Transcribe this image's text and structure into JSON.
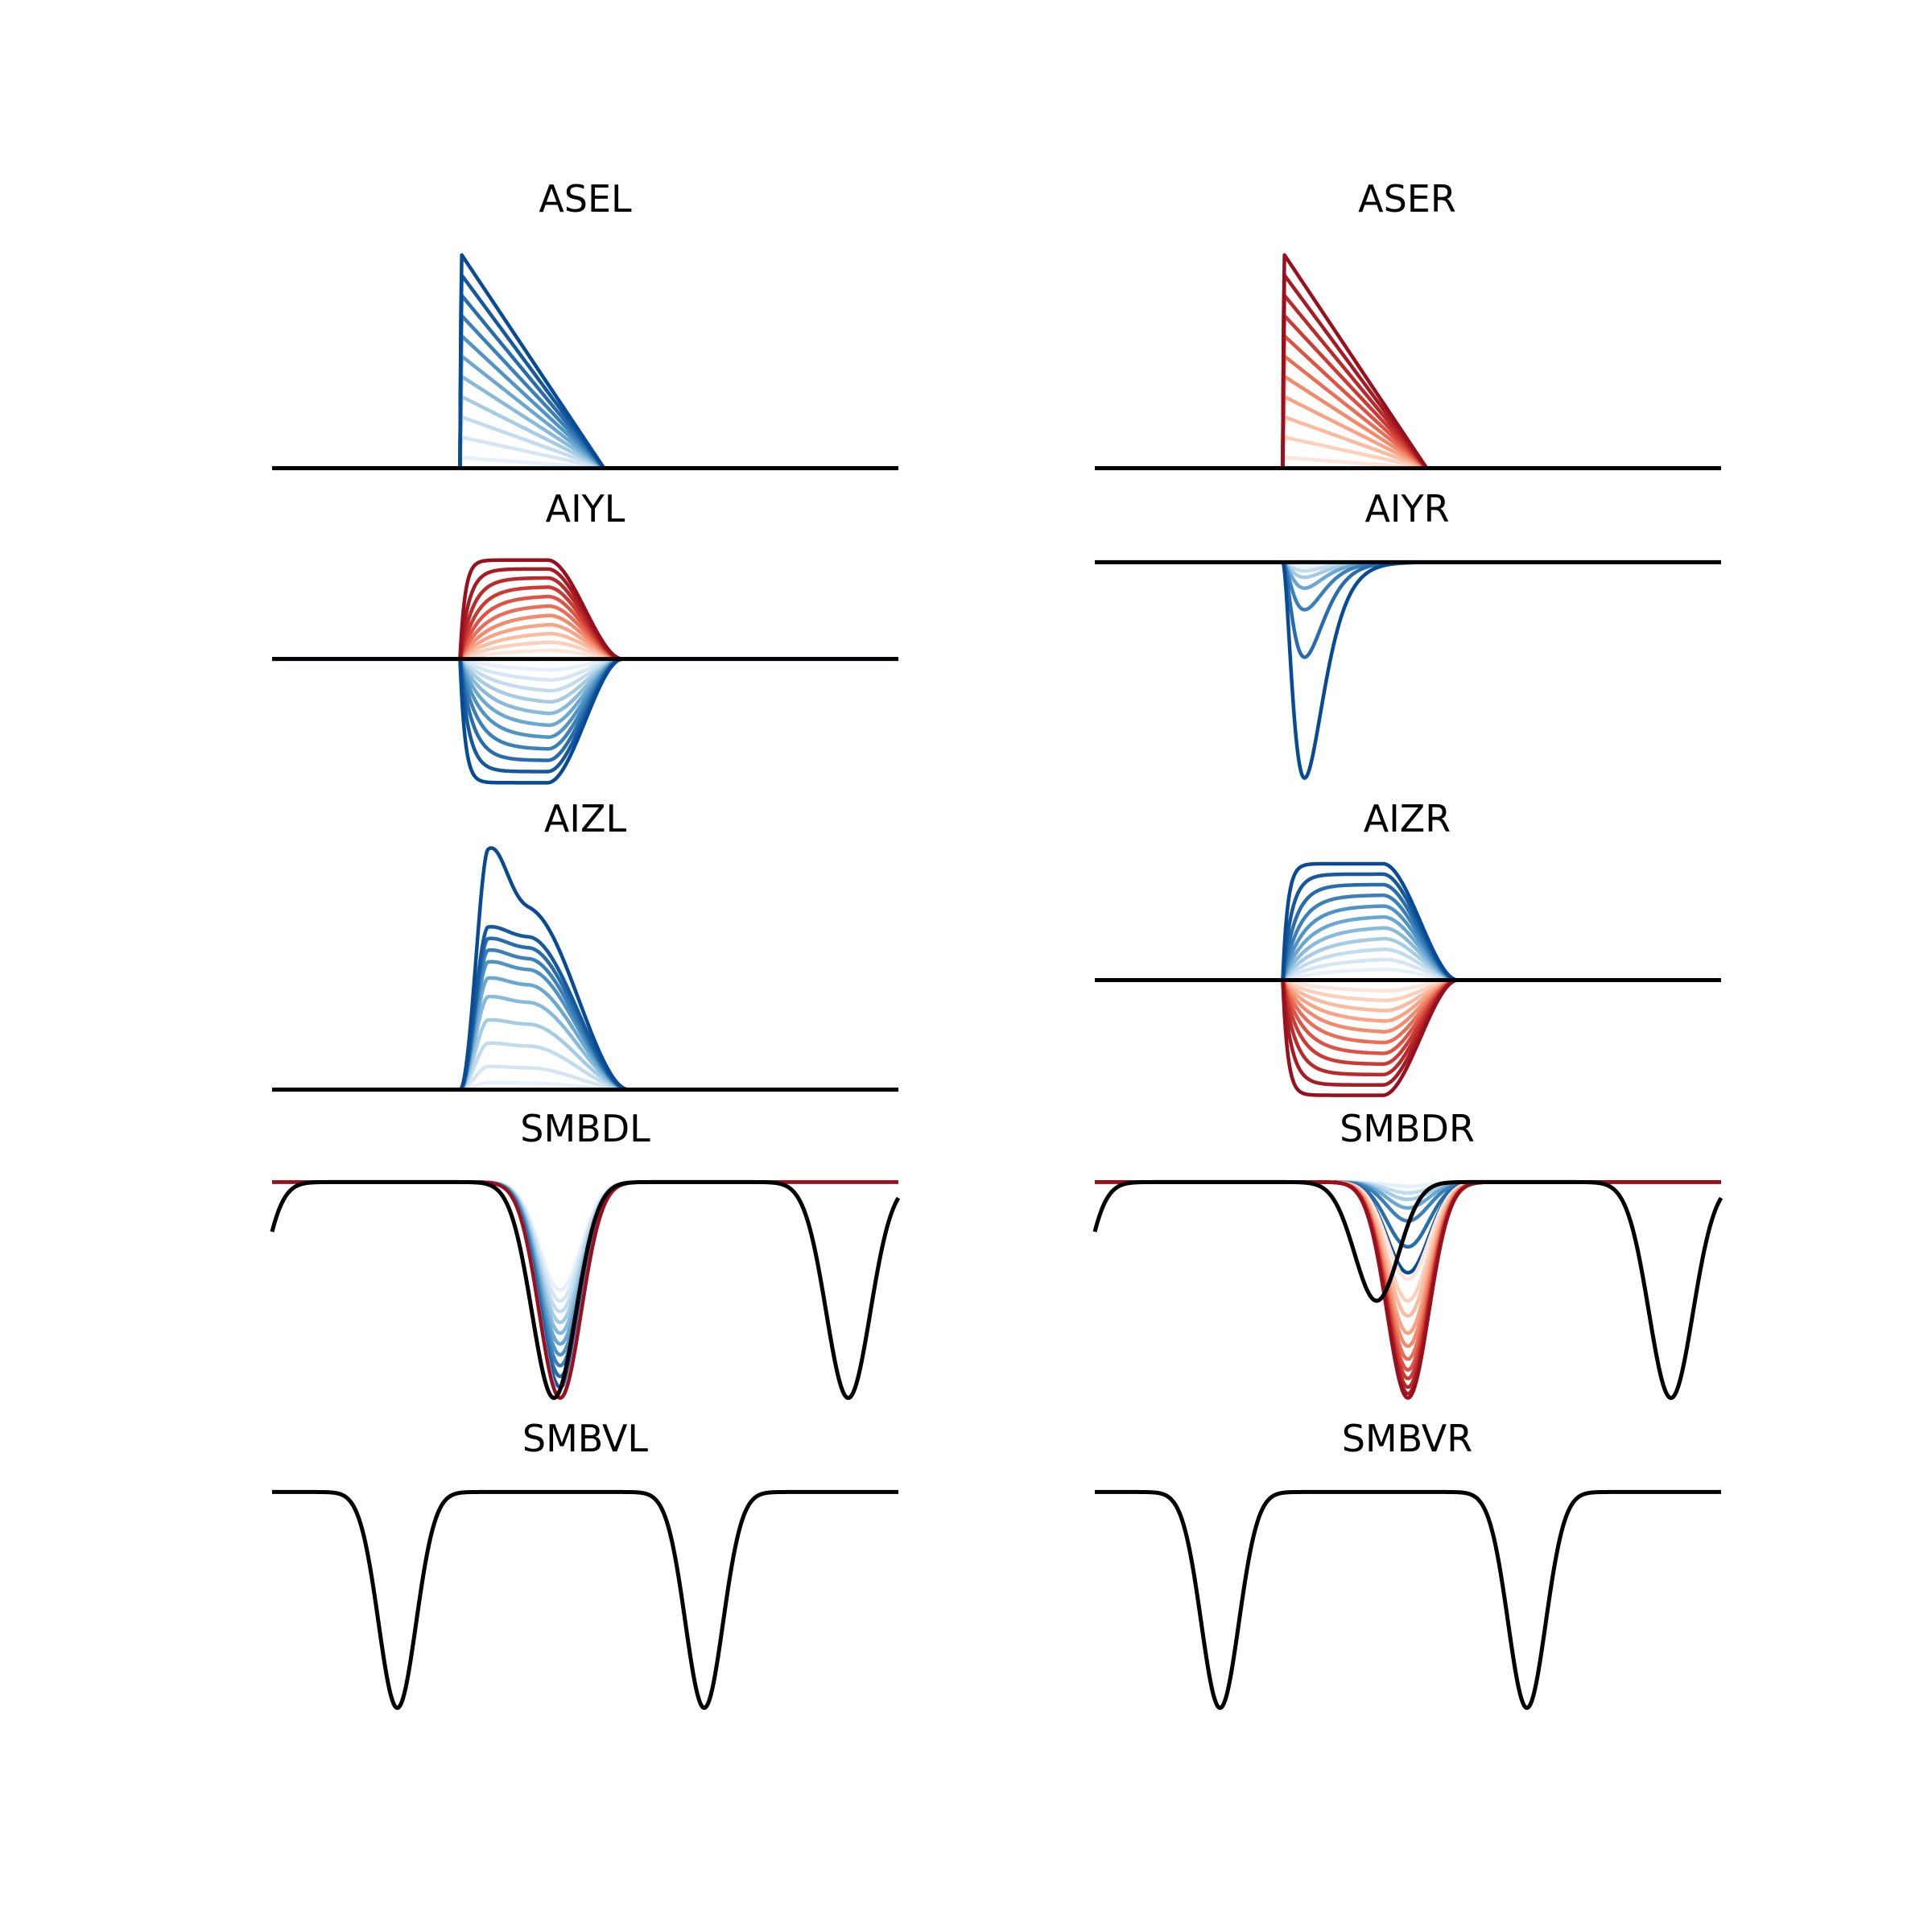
{
  "figure": {
    "panel_titles": [
      "ASEL",
      "ASER",
      "AIYL",
      "AIYR",
      "AIZL",
      "AIZR",
      "SMBDL",
      "SMBDR",
      "SMBVL",
      "SMBVR"
    ]
  },
  "colors": {
    "reference_line": "#000000",
    "blues": [
      "#e6f0fa",
      "#d4e6f4",
      "#c2dcef",
      "#a6cce4",
      "#88bbdb",
      "#6aa8d1",
      "#4f94c4",
      "#3b80b8",
      "#276dac",
      "#16589c",
      "#084b94"
    ],
    "reds": [
      "#fde4d8",
      "#fcd0bb",
      "#fbbba0",
      "#f8a385",
      "#f28a6c",
      "#ea6d55",
      "#de5343",
      "#cd3a34",
      "#b92a2b",
      "#a51c25",
      "#980f1e"
    ]
  },
  "chart_data": [
    {
      "type": "line",
      "title": "ASEL",
      "xlabel": "",
      "ylabel": "",
      "axes_visible": false,
      "grid": false,
      "legend": "none",
      "xlim": [
        0,
        10
      ],
      "ylim": [
        -0.05,
        1.05
      ],
      "family": "ramp",
      "color_scale": "blues",
      "n_traces": 11,
      "trace_amplitude": [
        0.05,
        1.0
      ],
      "t_start": 3.0,
      "t_end": 5.3,
      "reference_trace": "flat",
      "reference_value": 0
    },
    {
      "type": "line",
      "title": "ASER",
      "xlabel": "",
      "ylabel": "",
      "axes_visible": false,
      "grid": false,
      "legend": "none",
      "xlim": [
        0,
        10
      ],
      "ylim": [
        -0.05,
        1.05
      ],
      "family": "ramp",
      "color_scale": "reds",
      "n_traces": 11,
      "trace_amplitude": [
        0.05,
        1.0
      ],
      "t_start": 3.0,
      "t_end": 5.3,
      "reference_trace": "flat",
      "reference_value": 0
    },
    {
      "type": "line",
      "title": "AIYL",
      "xlabel": "",
      "ylabel": "",
      "axes_visible": false,
      "grid": false,
      "legend": "none",
      "xlim": [
        0,
        10
      ],
      "ylim": [
        -1.05,
        0.87
      ],
      "family": "plateau",
      "groups": [
        {
          "color_scale": "reds",
          "n_traces": 11,
          "trace_amplitude": [
            0.08,
            0.8
          ],
          "direction": 1
        },
        {
          "color_scale": "blues",
          "n_traces": 11,
          "trace_amplitude": [
            0.1,
            1.0
          ],
          "direction": -1
        }
      ],
      "t_start": 3.0,
      "t_end": 5.6,
      "reference_trace": "flat",
      "reference_value": 0
    },
    {
      "type": "line",
      "title": "AIYR",
      "xlabel": "",
      "ylabel": "",
      "axes_visible": false,
      "grid": false,
      "legend": "none",
      "xlim": [
        0,
        10
      ],
      "ylim": [
        -1.05,
        0.05
      ],
      "family": "dip",
      "color_scale": "blues",
      "trace_amplitude": [
        0.02,
        0.04,
        0.07,
        0.12,
        0.22,
        0.44,
        1.0
      ],
      "t_peak": 3.35,
      "reference_trace": "flat",
      "reference_value": 0
    },
    {
      "type": "line",
      "title": "AIZL",
      "xlabel": "",
      "ylabel": "",
      "axes_visible": false,
      "grid": false,
      "legend": "none",
      "xlim": [
        0,
        10
      ],
      "ylim": [
        -0.04,
        1.0
      ],
      "family": "bump",
      "color_scale": "blues",
      "trace_amplitude": [
        0.03,
        0.1,
        0.2,
        0.3,
        0.4,
        0.48,
        0.55,
        0.6,
        0.65,
        0.7,
        0.98
      ],
      "t_start": 3.0,
      "t_end": 5.7,
      "reference_trace": "flat",
      "reference_value": 0
    },
    {
      "type": "line",
      "title": "AIZR",
      "xlabel": "",
      "ylabel": "",
      "axes_visible": false,
      "grid": false,
      "legend": "none",
      "xlim": [
        0,
        10
      ],
      "ylim": [
        -1.0,
        1.0
      ],
      "family": "plateau",
      "groups": [
        {
          "color_scale": "blues",
          "n_traces": 11,
          "trace_amplitude": [
            0.1,
            0.98
          ],
          "direction": 1
        },
        {
          "color_scale": "reds",
          "n_traces": 11,
          "trace_amplitude": [
            0.1,
            0.97
          ],
          "direction": -1
        }
      ],
      "t_start": 3.0,
      "t_end": 5.8,
      "reference_trace": "flat",
      "reference_value": 0
    },
    {
      "type": "line",
      "title": "SMBDL",
      "xlabel": "",
      "ylabel": "",
      "axes_visible": false,
      "grid": false,
      "legend": "none",
      "xlim": [
        0,
        10
      ],
      "ylim": [
        -1.05,
        0.05
      ],
      "family": "oscillation",
      "reference_trace": "periodic",
      "baseline": 0,
      "trough_depth": 1.0,
      "period": 5.0,
      "trough_centers": [
        -0.6,
        4.5,
        9.2
      ],
      "trough_width": 0.35,
      "perturbed_trough_center": 4.6,
      "groups": [
        {
          "color_scale": "blues",
          "trace_depth": [
            0.5,
            0.55,
            0.6,
            0.65,
            0.7,
            0.75,
            0.8,
            0.85,
            0.9,
            0.95,
            1.0
          ]
        },
        {
          "color_scale": "reds",
          "trace_depth": [
            0.99,
            1.0
          ]
        }
      ]
    },
    {
      "type": "line",
      "title": "SMBDR",
      "xlabel": "",
      "ylabel": "",
      "axes_visible": false,
      "grid": false,
      "legend": "none",
      "xlim": [
        0,
        10
      ],
      "ylim": [
        -1.05,
        0.05
      ],
      "family": "oscillation",
      "reference_trace": "periodic",
      "baseline": 0,
      "reference_depth": 0.55,
      "period": 5.0,
      "trough_centers": [
        -0.6,
        4.5,
        9.2
      ],
      "trough_width": 0.35,
      "perturbed_trough_center": 5.0,
      "groups": [
        {
          "color_scale": "blues",
          "trace_depth": [
            0.02,
            0.05,
            0.08,
            0.12,
            0.18,
            0.3,
            0.42
          ]
        },
        {
          "color_scale": "reds",
          "trace_depth": [
            0.45,
            0.55,
            0.62,
            0.7,
            0.76,
            0.82,
            0.87,
            0.91,
            0.95,
            0.98,
            1.0
          ]
        }
      ]
    },
    {
      "type": "line",
      "title": "SMBVL",
      "xlabel": "",
      "ylabel": "",
      "axes_visible": false,
      "grid": false,
      "legend": "none",
      "xlim": [
        0,
        10
      ],
      "ylim": [
        -1.05,
        0.05
      ],
      "family": "oscillation",
      "reference_trace": "periodic",
      "baseline": 0,
      "trough_depth": 1.0,
      "period": 5.0,
      "trough_centers": [
        2.0,
        6.9
      ],
      "trough_width": 0.3,
      "groups": []
    },
    {
      "type": "line",
      "title": "SMBVR",
      "xlabel": "",
      "ylabel": "",
      "axes_visible": false,
      "grid": false,
      "legend": "none",
      "xlim": [
        0,
        10
      ],
      "ylim": [
        -1.05,
        0.05
      ],
      "family": "oscillation",
      "reference_trace": "periodic",
      "baseline": 0,
      "trough_depth": 1.0,
      "period": 5.0,
      "trough_centers": [
        2.0,
        6.9
      ],
      "trough_width": 0.3,
      "groups": []
    }
  ]
}
